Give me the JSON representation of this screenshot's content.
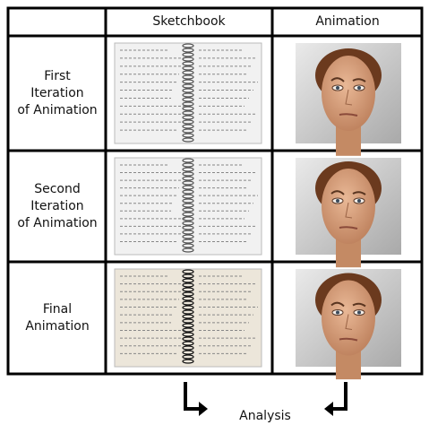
{
  "table": {
    "header": [
      "Sketchbook",
      "Animation"
    ],
    "rows": [
      {
        "label_lines": [
          "First",
          "Iteration",
          "of Animation"
        ]
      },
      {
        "label_lines": [
          "Second",
          "Iteration",
          "of Animation"
        ]
      },
      {
        "label_lines": [
          "Final",
          "Animation"
        ]
      }
    ]
  },
  "footer": {
    "label": "Analysis"
  }
}
